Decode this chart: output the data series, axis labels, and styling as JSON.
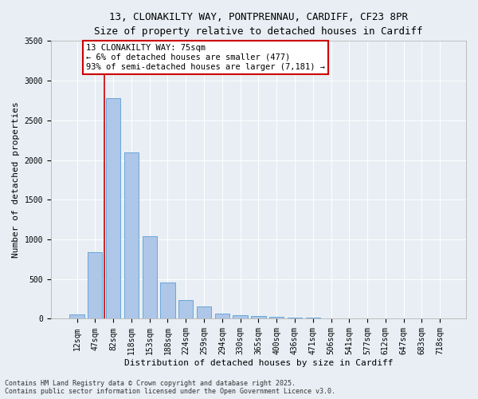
{
  "title_line1": "13, CLONAKILTY WAY, PONTPRENNAU, CARDIFF, CF23 8PR",
  "title_line2": "Size of property relative to detached houses in Cardiff",
  "xlabel": "Distribution of detached houses by size in Cardiff",
  "ylabel": "Number of detached properties",
  "bar_color": "#aec6e8",
  "bar_edge_color": "#5a9fd4",
  "categories": [
    "12sqm",
    "47sqm",
    "82sqm",
    "118sqm",
    "153sqm",
    "188sqm",
    "224sqm",
    "259sqm",
    "294sqm",
    "330sqm",
    "365sqm",
    "400sqm",
    "436sqm",
    "471sqm",
    "506sqm",
    "541sqm",
    "577sqm",
    "612sqm",
    "647sqm",
    "683sqm",
    "718sqm"
  ],
  "values": [
    50,
    840,
    2780,
    2100,
    1040,
    460,
    240,
    155,
    70,
    40,
    30,
    20,
    15,
    10,
    5,
    5,
    3,
    2,
    1,
    1,
    1
  ],
  "vline_color": "#cc0000",
  "annotation_title": "13 CLONAKILTY WAY: 75sqm",
  "annotation_line2": "← 6% of detached houses are smaller (477)",
  "annotation_line3": "93% of semi-detached houses are larger (7,181) →",
  "annotation_box_color": "#cc0000",
  "annotation_bg": "#ffffff",
  "ylim": [
    0,
    3500
  ],
  "yticks": [
    0,
    500,
    1000,
    1500,
    2000,
    2500,
    3000,
    3500
  ],
  "background_color": "#e8eef4",
  "footer_line1": "Contains HM Land Registry data © Crown copyright and database right 2025.",
  "footer_line2": "Contains public sector information licensed under the Open Government Licence v3.0.",
  "title_fontsize": 9,
  "subtitle_fontsize": 8.5,
  "xlabel_fontsize": 8,
  "ylabel_fontsize": 8,
  "tick_fontsize": 7,
  "footer_fontsize": 6,
  "annotation_fontsize": 7.5
}
